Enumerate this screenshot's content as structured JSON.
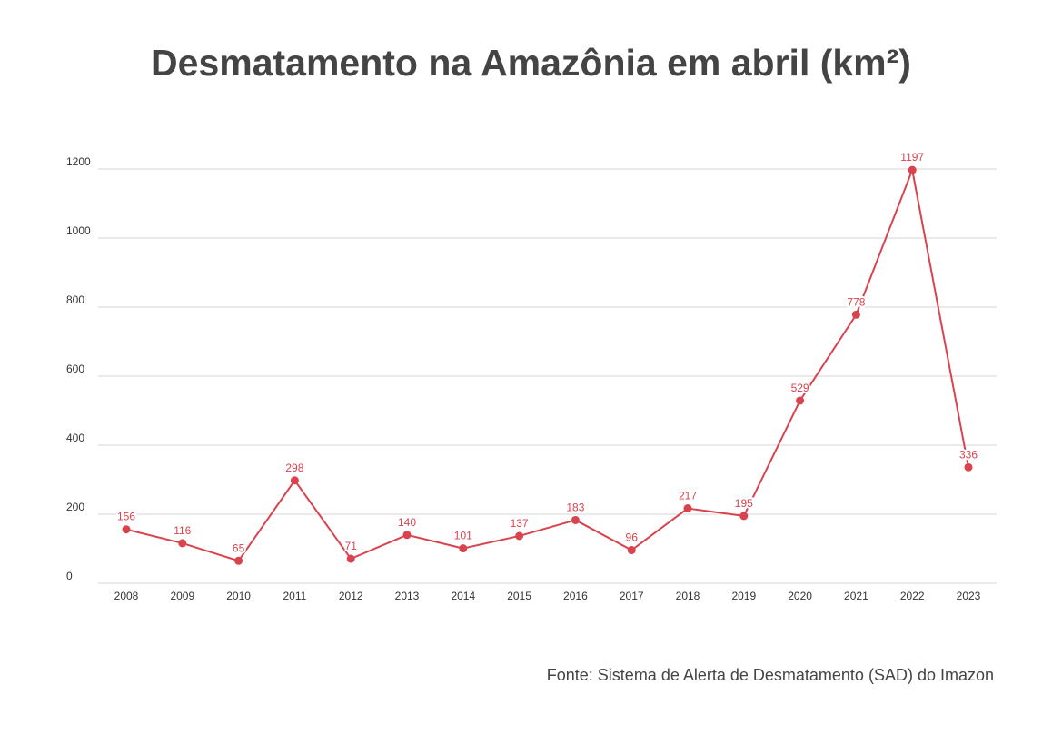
{
  "chart_data": {
    "type": "line",
    "title": "Desmatamento na Amazônia em abril (km²)",
    "source": "Fonte: Sistema de Alerta de Desmatamento (SAD) do Imazon",
    "xlabel": "",
    "ylabel": "",
    "ylim": [
      0,
      1200
    ],
    "yticks": [
      0,
      200,
      400,
      600,
      800,
      1000,
      1200
    ],
    "grid": true,
    "categories": [
      "2008",
      "2009",
      "2010",
      "2011",
      "2012",
      "2013",
      "2014",
      "2015",
      "2016",
      "2017",
      "2018",
      "2019",
      "2020",
      "2021",
      "2022",
      "2023"
    ],
    "series": [
      {
        "name": "Desmatamento (km²)",
        "color": "#d9434e",
        "values": [
          156,
          116,
          65,
          298,
          71,
          140,
          101,
          137,
          183,
          96,
          217,
          195,
          529,
          778,
          1197,
          336
        ]
      }
    ]
  }
}
